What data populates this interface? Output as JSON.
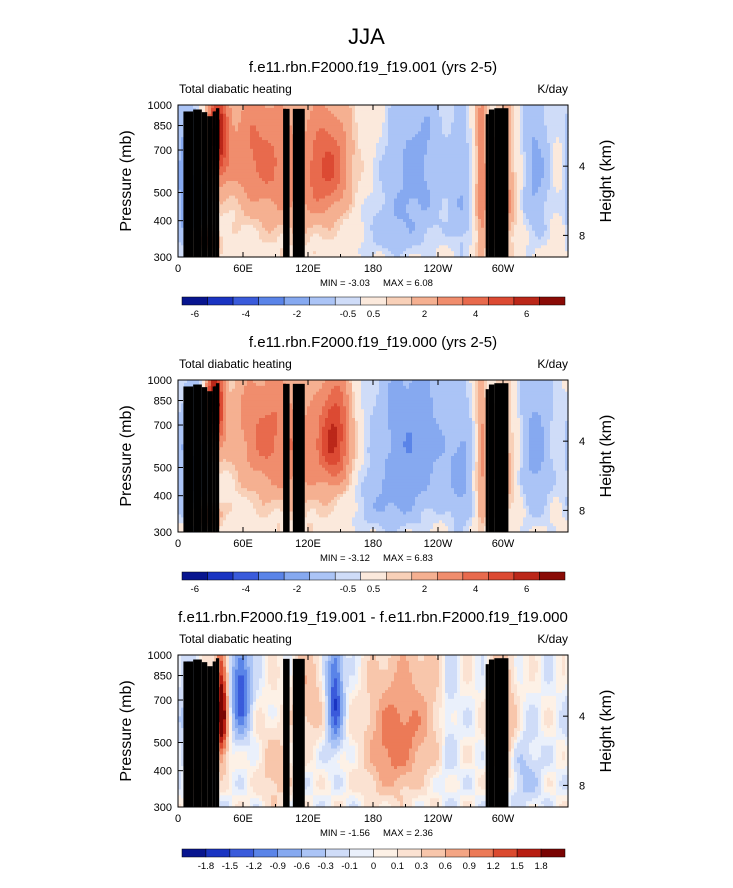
{
  "figure_title": "JJA",
  "chart_data": [
    {
      "type": "heatmap",
      "title": "f.e11.rbn.F2000.f19_f19.001 (yrs 2-5)",
      "left_label": "Total diabatic heating",
      "units": "K/day",
      "ylabel": "Pressure (mb)",
      "y2label": "Height (km)",
      "xticks": [
        "0",
        "60E",
        "120E",
        "180",
        "120W",
        "60W"
      ],
      "yticks": [
        "300",
        "400",
        "500",
        "700",
        "850",
        "1000"
      ],
      "y2ticks": [
        "8",
        "4"
      ],
      "min_label": "MIN =  -3.03",
      "max_label": "MAX =   6.08",
      "min": -3.03,
      "max": 6.08,
      "colorbar_labels": [
        "-6",
        "-4",
        "-2",
        "-0.5",
        "0.5",
        "2",
        "4",
        "6"
      ],
      "colorbar_colors": [
        "#08158f",
        "#1a34c2",
        "#3a5bdb",
        "#5a84e8",
        "#86a9f0",
        "#abc4f6",
        "#cfdcf8",
        "#fbe9dc",
        "#f8d0b8",
        "#f5b091",
        "#f08d6d",
        "#e86a4d",
        "#dc4a33",
        "#bb2719",
        "#8a0b06"
      ],
      "colorbar_order": "ascending",
      "features": [
        {
          "lon": 36,
          "p": 390,
          "amp": 5.6,
          "sx": 7,
          "sy": 110
        },
        {
          "lon": 70,
          "p": 430,
          "amp": 2.6,
          "sx": 22,
          "sy": 170
        },
        {
          "lon": 140,
          "p": 480,
          "amp": 3.1,
          "sx": 14,
          "sy": 150
        },
        {
          "lon": 110,
          "p": 560,
          "amp": 1.9,
          "sx": 28,
          "sy": 210
        },
        {
          "lon": 220,
          "p": 480,
          "amp": -2.3,
          "sx": 22,
          "sy": 250
        },
        {
          "lon": 195,
          "p": 820,
          "amp": -1.2,
          "sx": 24,
          "sy": 140
        },
        {
          "lon": 14,
          "p": 600,
          "amp": -1.9,
          "sx": 9,
          "sy": 230
        },
        {
          "lon": 5,
          "p": 520,
          "amp": -1.6,
          "sx": 6,
          "sy": 320
        },
        {
          "lon": 26,
          "p": 880,
          "amp": 3.6,
          "sx": 8,
          "sy": 60
        },
        {
          "lon": 280,
          "p": 560,
          "amp": 2.7,
          "sx": 4,
          "sy": 320
        },
        {
          "lon": 300,
          "p": 600,
          "amp": 2.6,
          "sx": 9,
          "sy": 220
        },
        {
          "lon": 330,
          "p": 500,
          "amp": -2.2,
          "sx": 10,
          "sy": 270
        },
        {
          "lon": 262,
          "p": 650,
          "amp": -1.5,
          "sx": 8,
          "sy": 260
        }
      ]
    },
    {
      "type": "heatmap",
      "title": "f.e11.rbn.F2000.f19_f19.000 (yrs 2-5)",
      "left_label": "Total diabatic heating",
      "units": "K/day",
      "ylabel": "Pressure (mb)",
      "y2label": "Height (km)",
      "xticks": [
        "0",
        "60E",
        "120E",
        "180",
        "120W",
        "60W"
      ],
      "yticks": [
        "300",
        "400",
        "500",
        "700",
        "850",
        "1000"
      ],
      "y2ticks": [
        "8",
        "4"
      ],
      "min_label": "MIN =  -3.12",
      "max_label": "MAX =   6.83",
      "min": -3.12,
      "max": 6.83,
      "colorbar_labels": [
        "-6",
        "-4",
        "-2",
        "-0.5",
        "0.5",
        "2",
        "4",
        "6"
      ],
      "colorbar_colors": [
        "#08158f",
        "#1a34c2",
        "#3a5bdb",
        "#5a84e8",
        "#86a9f0",
        "#abc4f6",
        "#cfdcf8",
        "#fbe9dc",
        "#f8d0b8",
        "#f5b091",
        "#f08d6d",
        "#e86a4d",
        "#dc4a33",
        "#bb2719",
        "#8a0b06"
      ],
      "colorbar_order": "ascending",
      "features": [
        {
          "lon": 34,
          "p": 370,
          "amp": 6.4,
          "sx": 6,
          "sy": 100
        },
        {
          "lon": 75,
          "p": 440,
          "amp": 2.4,
          "sx": 22,
          "sy": 170
        },
        {
          "lon": 145,
          "p": 470,
          "amp": 4.6,
          "sx": 11,
          "sy": 150
        },
        {
          "lon": 110,
          "p": 560,
          "amp": 2.0,
          "sx": 26,
          "sy": 210
        },
        {
          "lon": 215,
          "p": 480,
          "amp": -2.8,
          "sx": 28,
          "sy": 260
        },
        {
          "lon": 190,
          "p": 830,
          "amp": -1.3,
          "sx": 22,
          "sy": 130
        },
        {
          "lon": 12,
          "p": 580,
          "amp": -2.3,
          "sx": 11,
          "sy": 260
        },
        {
          "lon": 28,
          "p": 880,
          "amp": 3.4,
          "sx": 8,
          "sy": 60
        },
        {
          "lon": 280,
          "p": 560,
          "amp": 2.4,
          "sx": 4,
          "sy": 320
        },
        {
          "lon": 300,
          "p": 600,
          "amp": 1.8,
          "sx": 9,
          "sy": 220
        },
        {
          "lon": 330,
          "p": 520,
          "amp": -2.4,
          "sx": 11,
          "sy": 280
        },
        {
          "lon": 262,
          "p": 650,
          "amp": -1.8,
          "sx": 9,
          "sy": 260
        }
      ]
    },
    {
      "type": "heatmap",
      "title": "f.e11.rbn.F2000.f19_f19.001 - f.e11.rbn.F2000.f19_f19.000",
      "left_label": "Total diabatic heating",
      "units": "K/day",
      "ylabel": "Pressure (mb)",
      "y2label": "Height (km)",
      "xticks": [
        "0",
        "60E",
        "120E",
        "180",
        "120W",
        "60W"
      ],
      "yticks": [
        "300",
        "400",
        "500",
        "700",
        "850",
        "1000"
      ],
      "y2ticks": [
        "8",
        "4"
      ],
      "min_label": "MIN =  -1.56",
      "max_label": "MAX =   2.36",
      "min": -1.56,
      "max": 2.36,
      "colorbar_labels": [
        "-1.8",
        "-1.5",
        "-1.2",
        "-0.9",
        "-0.6",
        "-0.3",
        "-0.1",
        "0",
        "0.1",
        "0.3",
        "0.6",
        "0.9",
        "1.2",
        "1.5",
        "1.8"
      ],
      "colorbar_colors": [
        "#08158f",
        "#1a34c2",
        "#3a5bdb",
        "#5a84e8",
        "#86a9f0",
        "#abc4f6",
        "#cfdcf8",
        "#eaf0fb",
        "#fdf1e6",
        "#fbe2d2",
        "#f8c6ab",
        "#f4a584",
        "#ec7a57",
        "#db4a2f",
        "#b81e12",
        "#7a0403"
      ],
      "colorbar_order": "ascending",
      "features": [
        {
          "lon": 40,
          "p": 470,
          "amp": 2.25,
          "sx": 4,
          "sy": 150
        },
        {
          "lon": 58,
          "p": 400,
          "amp": -1.5,
          "sx": 6,
          "sy": 110
        },
        {
          "lon": 145,
          "p": 420,
          "amp": -1.5,
          "sx": 5,
          "sy": 130
        },
        {
          "lon": 195,
          "p": 620,
          "amp": 0.9,
          "sx": 16,
          "sy": 200
        },
        {
          "lon": 120,
          "p": 420,
          "amp": 0.55,
          "sx": 10,
          "sy": 120
        },
        {
          "lon": 220,
          "p": 500,
          "amp": 0.6,
          "sx": 18,
          "sy": 200
        },
        {
          "lon": 20,
          "p": 700,
          "amp": 0.55,
          "sx": 6,
          "sy": 180
        },
        {
          "lon": 90,
          "p": 750,
          "amp": 0.5,
          "sx": 10,
          "sy": 160
        },
        {
          "lon": 300,
          "p": 520,
          "amp": 0.7,
          "sx": 8,
          "sy": 200
        },
        {
          "lon": 320,
          "p": 780,
          "amp": -0.4,
          "sx": 10,
          "sy": 150
        },
        {
          "lon": 8,
          "p": 500,
          "amp": -0.35,
          "sx": 6,
          "sy": 180
        },
        {
          "lon": 250,
          "p": 520,
          "amp": -0.3,
          "sx": 6,
          "sy": 220
        }
      ]
    }
  ],
  "topography": [
    {
      "lon0": 5,
      "lon1": 14,
      "p": 950
    },
    {
      "lon0": 14,
      "lon1": 22,
      "p": 965
    },
    {
      "lon0": 22,
      "lon1": 27,
      "p": 945
    },
    {
      "lon0": 27,
      "lon1": 32,
      "p": 915
    },
    {
      "lon0": 32,
      "lon1": 35,
      "p": 950
    },
    {
      "lon0": 35,
      "lon1": 38,
      "p": 975
    },
    {
      "lon0": 97,
      "lon1": 103,
      "p": 970
    },
    {
      "lon0": 106,
      "lon1": 117,
      "p": 970
    },
    {
      "lon0": 284,
      "lon1": 287,
      "p": 930
    },
    {
      "lon0": 287,
      "lon1": 292,
      "p": 965
    },
    {
      "lon0": 292,
      "lon1": 305,
      "p": 975
    }
  ]
}
